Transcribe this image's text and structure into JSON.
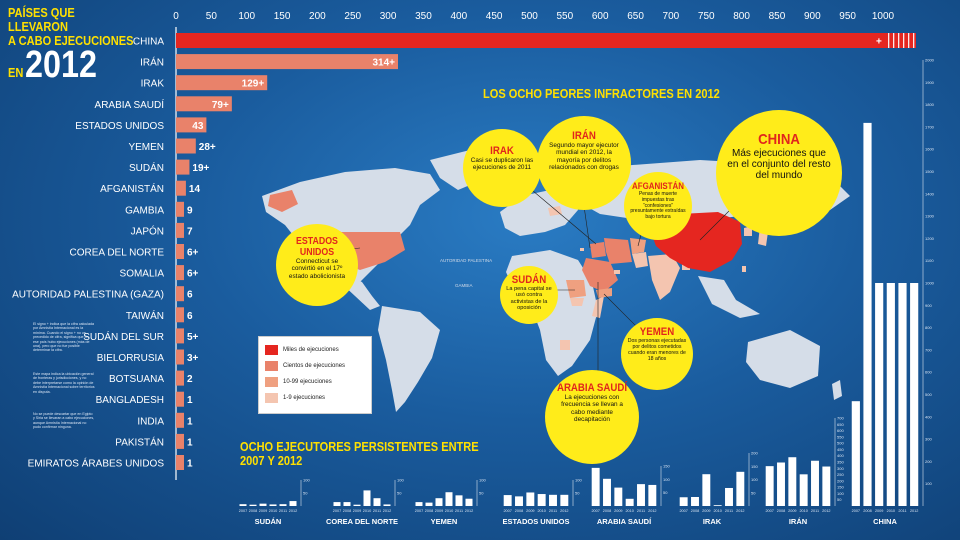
{
  "title": {
    "line1": "PAÍSES QUE LLEVARON",
    "line2": "A CABO EJECUCIONES",
    "line3": "EN",
    "year": "2012"
  },
  "colors": {
    "bar_china": "#e52620",
    "bar_other": "#e9826a",
    "bar_light": "#f2b79e",
    "yellow": "#ffe000",
    "bubble": "#ffec1a"
  },
  "chart_data": [
    {
      "type": "bar",
      "orientation": "horizontal",
      "title": "PAÍSES QUE LLEVARON A CABO EJECUCIONES EN 2012",
      "xlim": [
        0,
        1000
      ],
      "xticks": [
        "0",
        "50",
        "100",
        "150",
        "200",
        "250",
        "300",
        "350",
        "400",
        "450",
        "500",
        "550",
        "600",
        "650",
        "700",
        "750",
        "800",
        "850",
        "900",
        "950",
        "1000"
      ],
      "categories": [
        "CHINA",
        "IRÁN",
        "IRAK",
        "ARABIA SAUDÍ",
        "ESTADOS UNIDOS",
        "YEMEN",
        "SUDÁN",
        "AFGANISTÁN",
        "GAMBIA",
        "JAPÓN",
        "COREA DEL NORTE",
        "SOMALIA",
        "AUTORIDAD PALESTINA (GAZA)",
        "TAIWÁN",
        "SUDÁN DEL SUR",
        "BIELORRUSIA",
        "BOTSUANA",
        "BANGLADESH",
        "INDIA",
        "PAKISTÁN",
        "EMIRATOS ÁRABES UNIDOS"
      ],
      "values": [
        1000,
        314,
        129,
        79,
        43,
        28,
        19,
        14,
        9,
        7,
        6,
        6,
        6,
        6,
        5,
        3,
        2,
        1,
        1,
        1,
        1
      ],
      "value_labels": [
        "+",
        "314+",
        "129+",
        "79+",
        "43",
        "28+",
        "19+",
        "14",
        "9",
        "7",
        "6+",
        "6+",
        "6",
        "6",
        "5+",
        "3+",
        "2",
        "1",
        "1",
        "1",
        "1"
      ]
    },
    {
      "type": "bar",
      "title": "OCHO EJECUTORES PERSISTENTES ENTRE 2007 Y 2012",
      "years": [
        "2007",
        "2008",
        "2009",
        "2010",
        "2011",
        "2012"
      ],
      "series": [
        {
          "name": "SUDÁN",
          "values": [
            7,
            5,
            9,
            6,
            7,
            19
          ],
          "ylim": [
            0,
            100
          ],
          "ticks": [
            "100",
            "50"
          ]
        },
        {
          "name": "COREA DEL NORTE",
          "values": [
            15,
            15,
            5,
            60,
            30,
            6
          ],
          "ylim": [
            0,
            100
          ],
          "ticks": [
            "100",
            "50"
          ]
        },
        {
          "name": "YEMEN",
          "values": [
            15,
            13,
            30,
            53,
            41,
            28
          ],
          "ylim": [
            0,
            100
          ],
          "ticks": [
            "100",
            "50"
          ]
        },
        {
          "name": "ESTADOS UNIDOS",
          "values": [
            42,
            37,
            52,
            46,
            43,
            43
          ],
          "ylim": [
            0,
            100
          ],
          "ticks": [
            "100",
            "50"
          ]
        },
        {
          "name": "ARABIA SAUDÍ",
          "values": [
            143,
            102,
            69,
            27,
            82,
            79
          ],
          "ylim": [
            0,
            150
          ],
          "ticks": [
            "150",
            "100",
            "50"
          ]
        },
        {
          "name": "IRAK",
          "values": [
            33,
            34,
            120,
            1,
            68,
            129
          ],
          "ylim": [
            0,
            200
          ],
          "ticks": [
            "200",
            "150",
            "100",
            "50"
          ]
        },
        {
          "name": "IRÁN",
          "values": [
            317,
            346,
            388,
            252,
            360,
            314
          ],
          "ylim": [
            0,
            700
          ],
          "ticks": [
            "700",
            "650",
            "600",
            "550",
            "500",
            "450",
            "400",
            "350",
            "300",
            "250",
            "200",
            "150",
            "100",
            "50"
          ]
        },
        {
          "name": "CHINA",
          "values": [
            470,
            1718,
            1000,
            1000,
            1000,
            1000
          ],
          "ylim": [
            0,
            2000
          ],
          "ticks": [
            "2000",
            "1900",
            "1800",
            "1700",
            "1600",
            "1500",
            "1400",
            "1300",
            "1200",
            "1100",
            "1000",
            "900",
            "800",
            "700",
            "600",
            "500",
            "400",
            "300",
            "200",
            "100"
          ]
        }
      ]
    }
  ],
  "map": {
    "title": "LOS OCHO PEORES INFRACTORES EN 2012",
    "labels": {
      "palestina": "AUTORIDAD PALESTINA",
      "gambia": "GAMBIA"
    },
    "legend": [
      "Miles de ejecuciones",
      "Cientos de ejecuciones",
      "10-99 ejecuciones",
      "1-9 ejecuciones"
    ],
    "legend_colors": [
      "#e52620",
      "#e9826a",
      "#efa080",
      "#f4c5b0"
    ],
    "bubbles": [
      {
        "id": "irak",
        "heading": "IRAK",
        "text": "Casi se duplicaron las ejecuciones de 2011"
      },
      {
        "id": "iran",
        "heading": "IRÁN",
        "text": "Segundo mayor ejecutor mundial en 2012, la mayoría por delitos relacionados con drogas"
      },
      {
        "id": "afganistan",
        "heading": "AFGANISTÁN",
        "text": "Penas de muerte impuestas tras “confesiones” presuntamente extraídas bajo tortura"
      },
      {
        "id": "china",
        "heading": "CHINA",
        "text": "Más ejecuciones que en el conjunto del resto del mundo"
      },
      {
        "id": "eeuu",
        "heading": "ESTADOS UNIDOS",
        "text": "Connecticut se convirtió en el 17º estado abolicionista"
      },
      {
        "id": "sudan",
        "heading": "SUDÁN",
        "text": "La pena capital se usó contra activistas de la oposición"
      },
      {
        "id": "yemen",
        "heading": "YEMEN",
        "text": "Dos personas ejecutadas por delitos cometidos cuando eran menores de 18 años"
      },
      {
        "id": "arabia",
        "heading": "ARABIA SAUDÍ",
        "text": "La ejecuciones con frecuencia se llevan a cabo mediante decapitación"
      }
    ]
  },
  "persistent_title": {
    "line1": "OCHO EJECUTORES PERSISTENTES ENTRE",
    "line2": "2007 Y 2012"
  },
  "notes": {
    "note1": "El signo + indica que la cifra calculada por Amnistía Internacional es la mínima. Cuando el signo + no va precedido de cifra, significa que en ese país hubo ejecuciones (más de una), pero que no fue posible determinar la cifra.",
    "note2": "Este mapa indica la ubicación general de fronteras y jurisdicciones, y no debe interpretarse como la opinión de Amnistía Internacional sobre territorios en disputa.",
    "note3": "No se puede descartar que en Egipto y Siria se llevaran a cabo ejecuciones, aunque Amnistía Internacional no pudo confirmar ninguna."
  }
}
